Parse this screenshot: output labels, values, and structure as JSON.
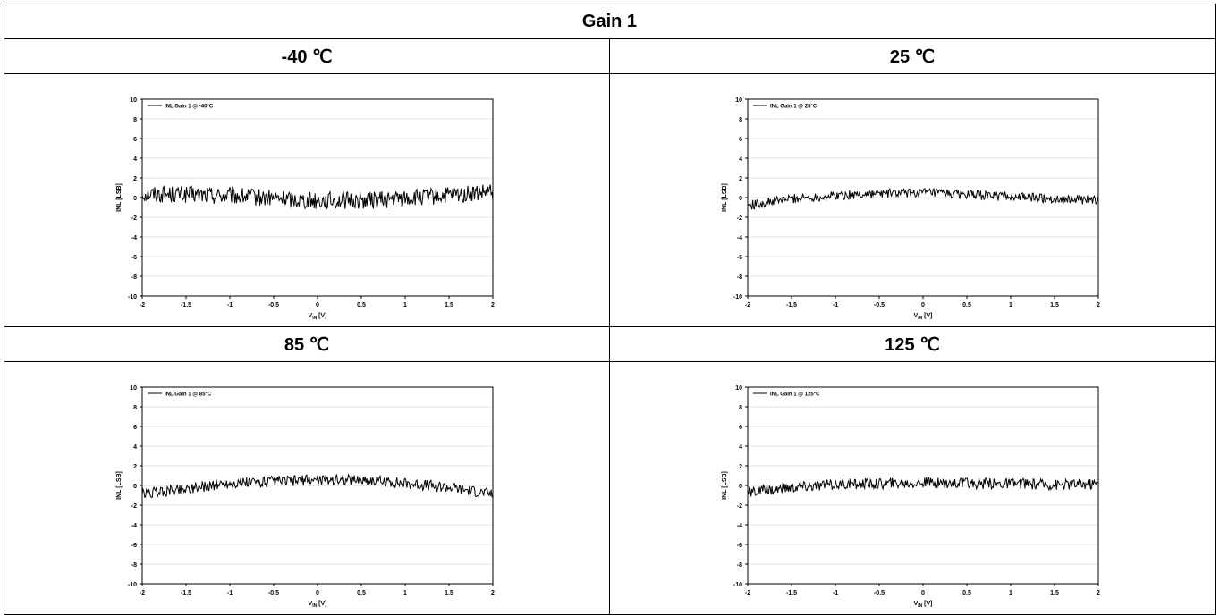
{
  "table": {
    "title": "Gain 1",
    "cells": [
      {
        "header": "-40 ℃"
      },
      {
        "header": "25 ℃"
      },
      {
        "header": "85 ℃"
      },
      {
        "header": "125 ℃"
      }
    ]
  },
  "chart_data": [
    {
      "type": "line",
      "legend": "INL Gain 1 @ -40°C",
      "xlabel_main": "V",
      "xlabel_sub": "IN",
      "xlabel_unit": " [V]",
      "ylabel": "INL [LSB]",
      "xlim": [
        -2,
        2
      ],
      "ylim": [
        -10,
        10
      ],
      "xticks": [
        "-2",
        "-1.5",
        "-1",
        "-0.5",
        "0",
        "0.5",
        "1",
        "1.5",
        "2"
      ],
      "yticks": [
        "10",
        "8",
        "6",
        "4",
        "2",
        "0",
        "-2",
        "-4",
        "-6",
        "-8",
        "-10"
      ],
      "grid": true,
      "legend_position": "top-left",
      "series": [
        {
          "name": "INL Gain 1 @ -40°C",
          "x": [
            -2,
            -1.5,
            -1,
            -0.5,
            0,
            0.5,
            1,
            1.5,
            2
          ],
          "y": [
            0.4,
            0.3,
            0.2,
            -0.1,
            -0.3,
            -0.3,
            -0.1,
            0.2,
            0.5
          ],
          "noise": 1.1
        }
      ]
    },
    {
      "type": "line",
      "legend": "INL Gain 1 @ 25°C",
      "xlabel_main": "V",
      "xlabel_sub": "IN",
      "xlabel_unit": " [V]",
      "ylabel": "INL [LSB]",
      "xlim": [
        -2,
        2
      ],
      "ylim": [
        -10,
        10
      ],
      "xticks": [
        "-2",
        "-1.5",
        "-1",
        "-0.5",
        "0",
        "0.5",
        "1",
        "1.5",
        "2"
      ],
      "yticks": [
        "10",
        "8",
        "6",
        "4",
        "2",
        "0",
        "-2",
        "-4",
        "-6",
        "-8",
        "-10"
      ],
      "grid": true,
      "legend_position": "top-left",
      "series": [
        {
          "name": "INL Gain 1 @ 25°C",
          "x": [
            -2,
            -1.5,
            -1,
            -0.5,
            0,
            0.5,
            1,
            1.5,
            2
          ],
          "y": [
            -0.8,
            -0.1,
            0.2,
            0.4,
            0.5,
            0.3,
            0.1,
            -0.1,
            -0.3
          ],
          "noise": 0.6
        }
      ]
    },
    {
      "type": "line",
      "legend": "INL Gain 1 @ 85°C",
      "xlabel_main": "V",
      "xlabel_sub": "IN",
      "xlabel_unit": " [V]",
      "ylabel": "INL [LSB]",
      "xlim": [
        -2,
        2
      ],
      "ylim": [
        -10,
        10
      ],
      "xticks": [
        "-2",
        "-1.5",
        "-1",
        "-0.5",
        "0",
        "0.5",
        "1",
        "1.5",
        "2"
      ],
      "yticks": [
        "10",
        "8",
        "6",
        "4",
        "2",
        "0",
        "-2",
        "-4",
        "-6",
        "-8",
        "-10"
      ],
      "grid": true,
      "legend_position": "top-left",
      "series": [
        {
          "name": "INL Gain 1 @ 85°C",
          "x": [
            -2,
            -1.5,
            -1,
            -0.5,
            0,
            0.5,
            1,
            1.5,
            2
          ],
          "y": [
            -0.9,
            -0.3,
            0.2,
            0.4,
            0.6,
            0.6,
            0.2,
            -0.2,
            -0.9
          ],
          "noise": 0.7
        }
      ]
    },
    {
      "type": "line",
      "legend": "INL Gain 1 @ 125°C",
      "xlabel_main": "V",
      "xlabel_sub": "IN",
      "xlabel_unit": " [V]",
      "ylabel": "INL [LSB]",
      "xlim": [
        -2,
        2
      ],
      "ylim": [
        -10,
        10
      ],
      "xticks": [
        "-2",
        "-1.5",
        "-1",
        "-0.5",
        "0",
        "0.5",
        "1",
        "1.5",
        "2"
      ],
      "yticks": [
        "10",
        "8",
        "6",
        "4",
        "2",
        "0",
        "-2",
        "-4",
        "-6",
        "-8",
        "-10"
      ],
      "grid": true,
      "legend_position": "top-left",
      "series": [
        {
          "name": "INL Gain 1 @ 125°C",
          "x": [
            -2,
            -1.5,
            -1,
            -0.5,
            0,
            0.5,
            1,
            1.5,
            2
          ],
          "y": [
            -0.7,
            -0.2,
            0.1,
            0.2,
            0.3,
            0.2,
            0.2,
            0.1,
            0.2
          ],
          "noise": 0.7
        }
      ]
    }
  ]
}
